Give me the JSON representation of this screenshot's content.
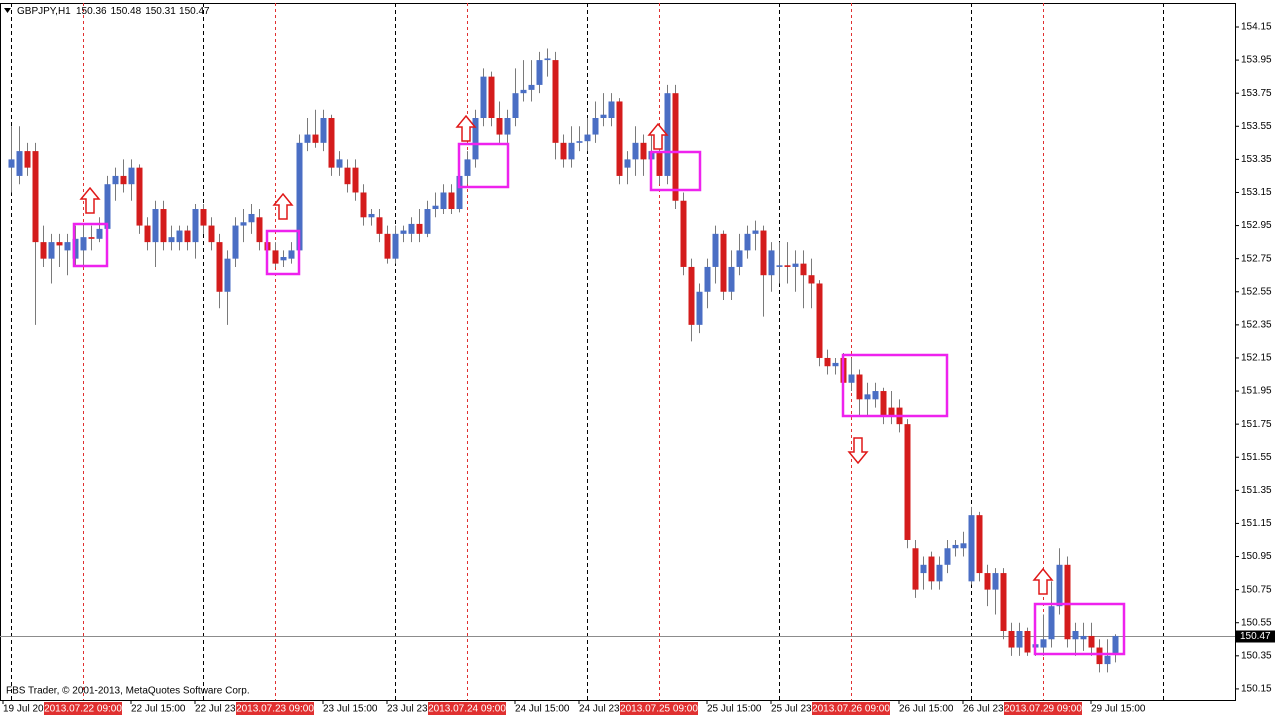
{
  "chart_data": {
    "type": "candlestick",
    "title": "GBPJPY,H1",
    "footer": "FBS Trader, © 2001-2013, MetaQuotes Software Corp.",
    "up_color": "#4a6ec4",
    "down_color": "#d41c1c",
    "wick_color": "#7a7a7a",
    "price_line_color": "#8c8c8c",
    "marker_line_color": "#e03030",
    "ylim": [
      150.083,
      154.295
    ],
    "yticks": [
      150.15,
      150.35,
      150.55,
      150.75,
      150.95,
      151.15,
      151.35,
      151.55,
      151.75,
      151.95,
      152.15,
      152.35,
      152.55,
      152.75,
      152.95,
      153.15,
      153.35,
      153.55,
      153.75,
      153.95,
      154.15
    ],
    "xlim": [
      -1.375,
      153
    ],
    "xticks": [
      {
        "value": -1,
        "label": "19 Jul 2013"
      },
      {
        "value": 15,
        "label": "22 Jul 15:00"
      },
      {
        "value": 23,
        "label": "22 Jul 23:00"
      },
      {
        "value": 39,
        "label": "23 Jul 15:00"
      },
      {
        "value": 47,
        "label": "23 Jul 23:00"
      },
      {
        "value": 63,
        "label": "24 Jul 15:00"
      },
      {
        "value": 71,
        "label": "24 Jul 23:00"
      },
      {
        "value": 87,
        "label": "25 Jul 15:00"
      },
      {
        "value": 95,
        "label": "25 Jul 23:00"
      },
      {
        "value": 111,
        "label": "26 Jul 15:00"
      },
      {
        "value": 119,
        "label": "26 Jul 23:00"
      },
      {
        "value": 135,
        "label": "29 Jul 15:00"
      }
    ],
    "separators": [
      0,
      24,
      48,
      72,
      96,
      120,
      144
    ],
    "vlines": [
      {
        "value": 9,
        "label": "2013.07.22 09:00"
      },
      {
        "value": 33,
        "label": "2013.07.23 09:00"
      },
      {
        "value": 57,
        "label": "2013.07.24 09:00"
      },
      {
        "value": 81,
        "label": "2013.07.25 09:00"
      },
      {
        "value": 105,
        "label": "2013.07.26 09:00"
      },
      {
        "value": 129,
        "label": "2013.07.29 09:00"
      }
    ],
    "candles": [
      [
        153.3,
        153.55,
        153.15,
        153.35
      ],
      [
        153.25,
        153.55,
        153.2,
        153.4
      ],
      [
        153.4,
        153.45,
        153.25,
        153.3
      ],
      [
        153.4,
        153.45,
        152.35,
        152.85
      ],
      [
        152.85,
        152.95,
        152.7,
        152.75
      ],
      [
        152.75,
        152.9,
        152.6,
        152.85
      ],
      [
        152.85,
        152.9,
        152.7,
        152.83
      ],
      [
        152.8,
        152.9,
        152.65,
        152.85
      ],
      [
        152.75,
        152.95,
        152.7,
        152.87
      ],
      [
        152.8,
        152.95,
        152.7,
        152.88
      ],
      [
        152.88,
        152.95,
        152.8,
        152.87
      ],
      [
        152.87,
        153.0,
        152.85,
        152.93
      ],
      [
        152.93,
        153.25,
        152.9,
        153.2
      ],
      [
        153.2,
        153.3,
        153.1,
        153.25
      ],
      [
        153.25,
        153.35,
        153.15,
        153.2
      ],
      [
        153.2,
        153.35,
        153.1,
        153.3
      ],
      [
        153.3,
        153.32,
        152.9,
        152.95
      ],
      [
        152.95,
        153.0,
        152.8,
        152.85
      ],
      [
        152.85,
        153.1,
        152.7,
        153.05
      ],
      [
        153.05,
        153.1,
        152.8,
        152.85
      ],
      [
        152.85,
        152.95,
        152.8,
        152.88
      ],
      [
        152.85,
        152.95,
        152.8,
        152.92
      ],
      [
        152.92,
        152.95,
        152.8,
        152.85
      ],
      [
        152.85,
        153.08,
        152.75,
        153.05
      ],
      [
        153.05,
        153.08,
        152.9,
        152.95
      ],
      [
        152.95,
        153.0,
        152.8,
        152.85
      ],
      [
        152.85,
        152.9,
        152.45,
        152.55
      ],
      [
        152.55,
        152.8,
        152.35,
        152.75
      ],
      [
        152.75,
        153.0,
        152.7,
        152.95
      ],
      [
        152.95,
        153.05,
        152.85,
        152.97
      ],
      [
        152.97,
        153.08,
        152.9,
        153.02
      ],
      [
        153.0,
        153.05,
        152.8,
        152.85
      ],
      [
        152.85,
        152.9,
        152.75,
        152.8
      ],
      [
        152.8,
        152.85,
        152.7,
        152.72
      ],
      [
        152.74,
        152.8,
        152.7,
        152.76
      ],
      [
        152.75,
        152.85,
        152.72,
        152.8
      ],
      [
        152.8,
        153.5,
        152.78,
        153.45
      ],
      [
        153.45,
        153.6,
        153.4,
        153.5
      ],
      [
        153.5,
        153.65,
        153.42,
        153.45
      ],
      [
        153.45,
        153.65,
        153.4,
        153.6
      ],
      [
        153.6,
        153.62,
        153.25,
        153.3
      ],
      [
        153.3,
        153.4,
        153.25,
        153.35
      ],
      [
        153.3,
        153.35,
        153.15,
        153.2
      ],
      [
        153.3,
        153.35,
        153.1,
        153.15
      ],
      [
        153.15,
        153.2,
        152.95,
        153.0
      ],
      [
        153.0,
        153.05,
        152.95,
        153.02
      ],
      [
        153.0,
        153.05,
        152.85,
        152.9
      ],
      [
        152.9,
        152.95,
        152.72,
        152.75
      ],
      [
        152.75,
        152.95,
        152.72,
        152.9
      ],
      [
        152.9,
        152.95,
        152.85,
        152.92
      ],
      [
        152.9,
        153.0,
        152.85,
        152.96
      ],
      [
        152.96,
        153.05,
        152.85,
        152.9
      ],
      [
        152.9,
        153.1,
        152.88,
        153.05
      ],
      [
        153.05,
        153.15,
        153.0,
        153.07
      ],
      [
        153.05,
        153.2,
        153.02,
        153.15
      ],
      [
        153.15,
        153.2,
        153.02,
        153.05
      ],
      [
        153.05,
        153.3,
        153.03,
        153.25
      ],
      [
        153.25,
        153.4,
        153.2,
        153.35
      ],
      [
        153.35,
        153.65,
        153.3,
        153.6
      ],
      [
        153.6,
        153.9,
        153.55,
        153.85
      ],
      [
        153.85,
        153.88,
        153.55,
        153.6
      ],
      [
        153.6,
        153.7,
        153.45,
        153.5
      ],
      [
        153.5,
        153.65,
        153.45,
        153.6
      ],
      [
        153.6,
        153.9,
        153.55,
        153.75
      ],
      [
        153.75,
        153.95,
        153.7,
        153.77
      ],
      [
        153.77,
        153.95,
        153.7,
        153.8
      ],
      [
        153.8,
        154.0,
        153.75,
        153.95
      ],
      [
        153.95,
        154.02,
        153.85,
        153.96
      ],
      [
        153.95,
        154.0,
        153.35,
        153.45
      ],
      [
        153.45,
        153.5,
        153.3,
        153.35
      ],
      [
        153.35,
        153.55,
        153.3,
        153.45
      ],
      [
        153.45,
        153.55,
        153.4,
        153.46
      ],
      [
        153.46,
        153.6,
        153.4,
        153.5
      ],
      [
        153.5,
        153.7,
        153.45,
        153.6
      ],
      [
        153.6,
        153.75,
        153.55,
        153.62
      ],
      [
        153.6,
        153.75,
        153.55,
        153.7
      ],
      [
        153.7,
        153.72,
        153.2,
        153.25
      ],
      [
        153.3,
        153.4,
        153.2,
        153.35
      ],
      [
        153.35,
        153.55,
        153.25,
        153.45
      ],
      [
        153.45,
        153.5,
        153.25,
        153.35
      ],
      [
        153.35,
        153.5,
        153.3,
        153.4
      ],
      [
        153.4,
        153.45,
        153.2,
        153.25
      ],
      [
        153.25,
        153.8,
        153.2,
        153.75
      ],
      [
        153.75,
        153.8,
        153.05,
        153.1
      ],
      [
        153.1,
        153.15,
        152.65,
        152.7
      ],
      [
        152.7,
        152.75,
        152.25,
        152.35
      ],
      [
        152.35,
        152.6,
        152.3,
        152.55
      ],
      [
        152.55,
        152.75,
        152.45,
        152.7
      ],
      [
        152.7,
        152.95,
        152.6,
        152.9
      ],
      [
        152.9,
        152.92,
        152.5,
        152.55
      ],
      [
        152.55,
        152.8,
        152.5,
        152.7
      ],
      [
        152.7,
        152.9,
        152.65,
        152.8
      ],
      [
        152.8,
        152.95,
        152.75,
        152.9
      ],
      [
        152.9,
        152.98,
        152.8,
        152.92
      ],
      [
        152.92,
        152.95,
        152.4,
        152.65
      ],
      [
        152.65,
        152.85,
        152.55,
        152.8
      ],
      [
        152.7,
        152.85,
        152.6,
        152.71
      ],
      [
        152.71,
        152.85,
        152.6,
        152.7
      ],
      [
        152.7,
        152.8,
        152.55,
        152.72
      ],
      [
        152.72,
        152.8,
        152.45,
        152.65
      ],
      [
        152.65,
        152.75,
        152.45,
        152.6
      ],
      [
        152.6,
        152.62,
        152.1,
        152.15
      ],
      [
        152.15,
        152.2,
        152.05,
        152.1
      ],
      [
        152.1,
        152.15,
        152.05,
        152.12
      ],
      [
        152.15,
        152.18,
        151.9,
        152.0
      ],
      [
        152.0,
        152.15,
        151.95,
        152.05
      ],
      [
        152.05,
        152.08,
        151.8,
        151.9
      ],
      [
        151.9,
        152.0,
        151.8,
        151.93
      ],
      [
        151.9,
        152.0,
        151.85,
        151.95
      ],
      [
        151.95,
        151.97,
        151.75,
        151.8
      ],
      [
        151.85,
        151.95,
        151.75,
        151.8
      ],
      [
        151.85,
        151.9,
        151.7,
        151.75
      ],
      [
        151.75,
        151.78,
        151.0,
        151.05
      ],
      [
        151.0,
        151.05,
        150.7,
        150.75
      ],
      [
        150.85,
        150.95,
        150.75,
        150.9
      ],
      [
        150.95,
        150.98,
        150.75,
        150.8
      ],
      [
        150.8,
        150.95,
        150.75,
        150.9
      ],
      [
        150.9,
        151.05,
        150.85,
        151.0
      ],
      [
        151.0,
        151.05,
        150.95,
        151.02
      ],
      [
        151.0,
        151.1,
        150.95,
        151.03
      ],
      [
        150.8,
        151.25,
        150.78,
        151.2
      ],
      [
        151.2,
        151.22,
        150.8,
        150.85
      ],
      [
        150.85,
        150.9,
        150.65,
        150.75
      ],
      [
        150.75,
        150.88,
        150.6,
        150.85
      ],
      [
        150.85,
        150.88,
        150.45,
        150.5
      ],
      [
        150.5,
        150.55,
        150.35,
        150.4
      ],
      [
        150.4,
        150.55,
        150.35,
        150.5
      ],
      [
        150.5,
        150.52,
        150.35,
        150.37
      ],
      [
        150.4,
        150.5,
        150.35,
        150.42
      ],
      [
        150.4,
        150.6,
        150.35,
        150.45
      ],
      [
        150.45,
        150.8,
        150.4,
        150.65
      ],
      [
        150.65,
        151.0,
        150.6,
        150.9
      ],
      [
        150.9,
        150.95,
        150.4,
        150.45
      ],
      [
        150.45,
        150.55,
        150.35,
        150.5
      ],
      [
        150.45,
        150.55,
        150.38,
        150.47
      ],
      [
        150.47,
        150.55,
        150.35,
        150.4
      ],
      [
        150.4,
        150.45,
        150.25,
        150.3
      ],
      [
        150.3,
        150.45,
        150.25,
        150.35
      ],
      [
        150.36,
        150.48,
        150.31,
        150.47
      ]
    ]
  }
}
